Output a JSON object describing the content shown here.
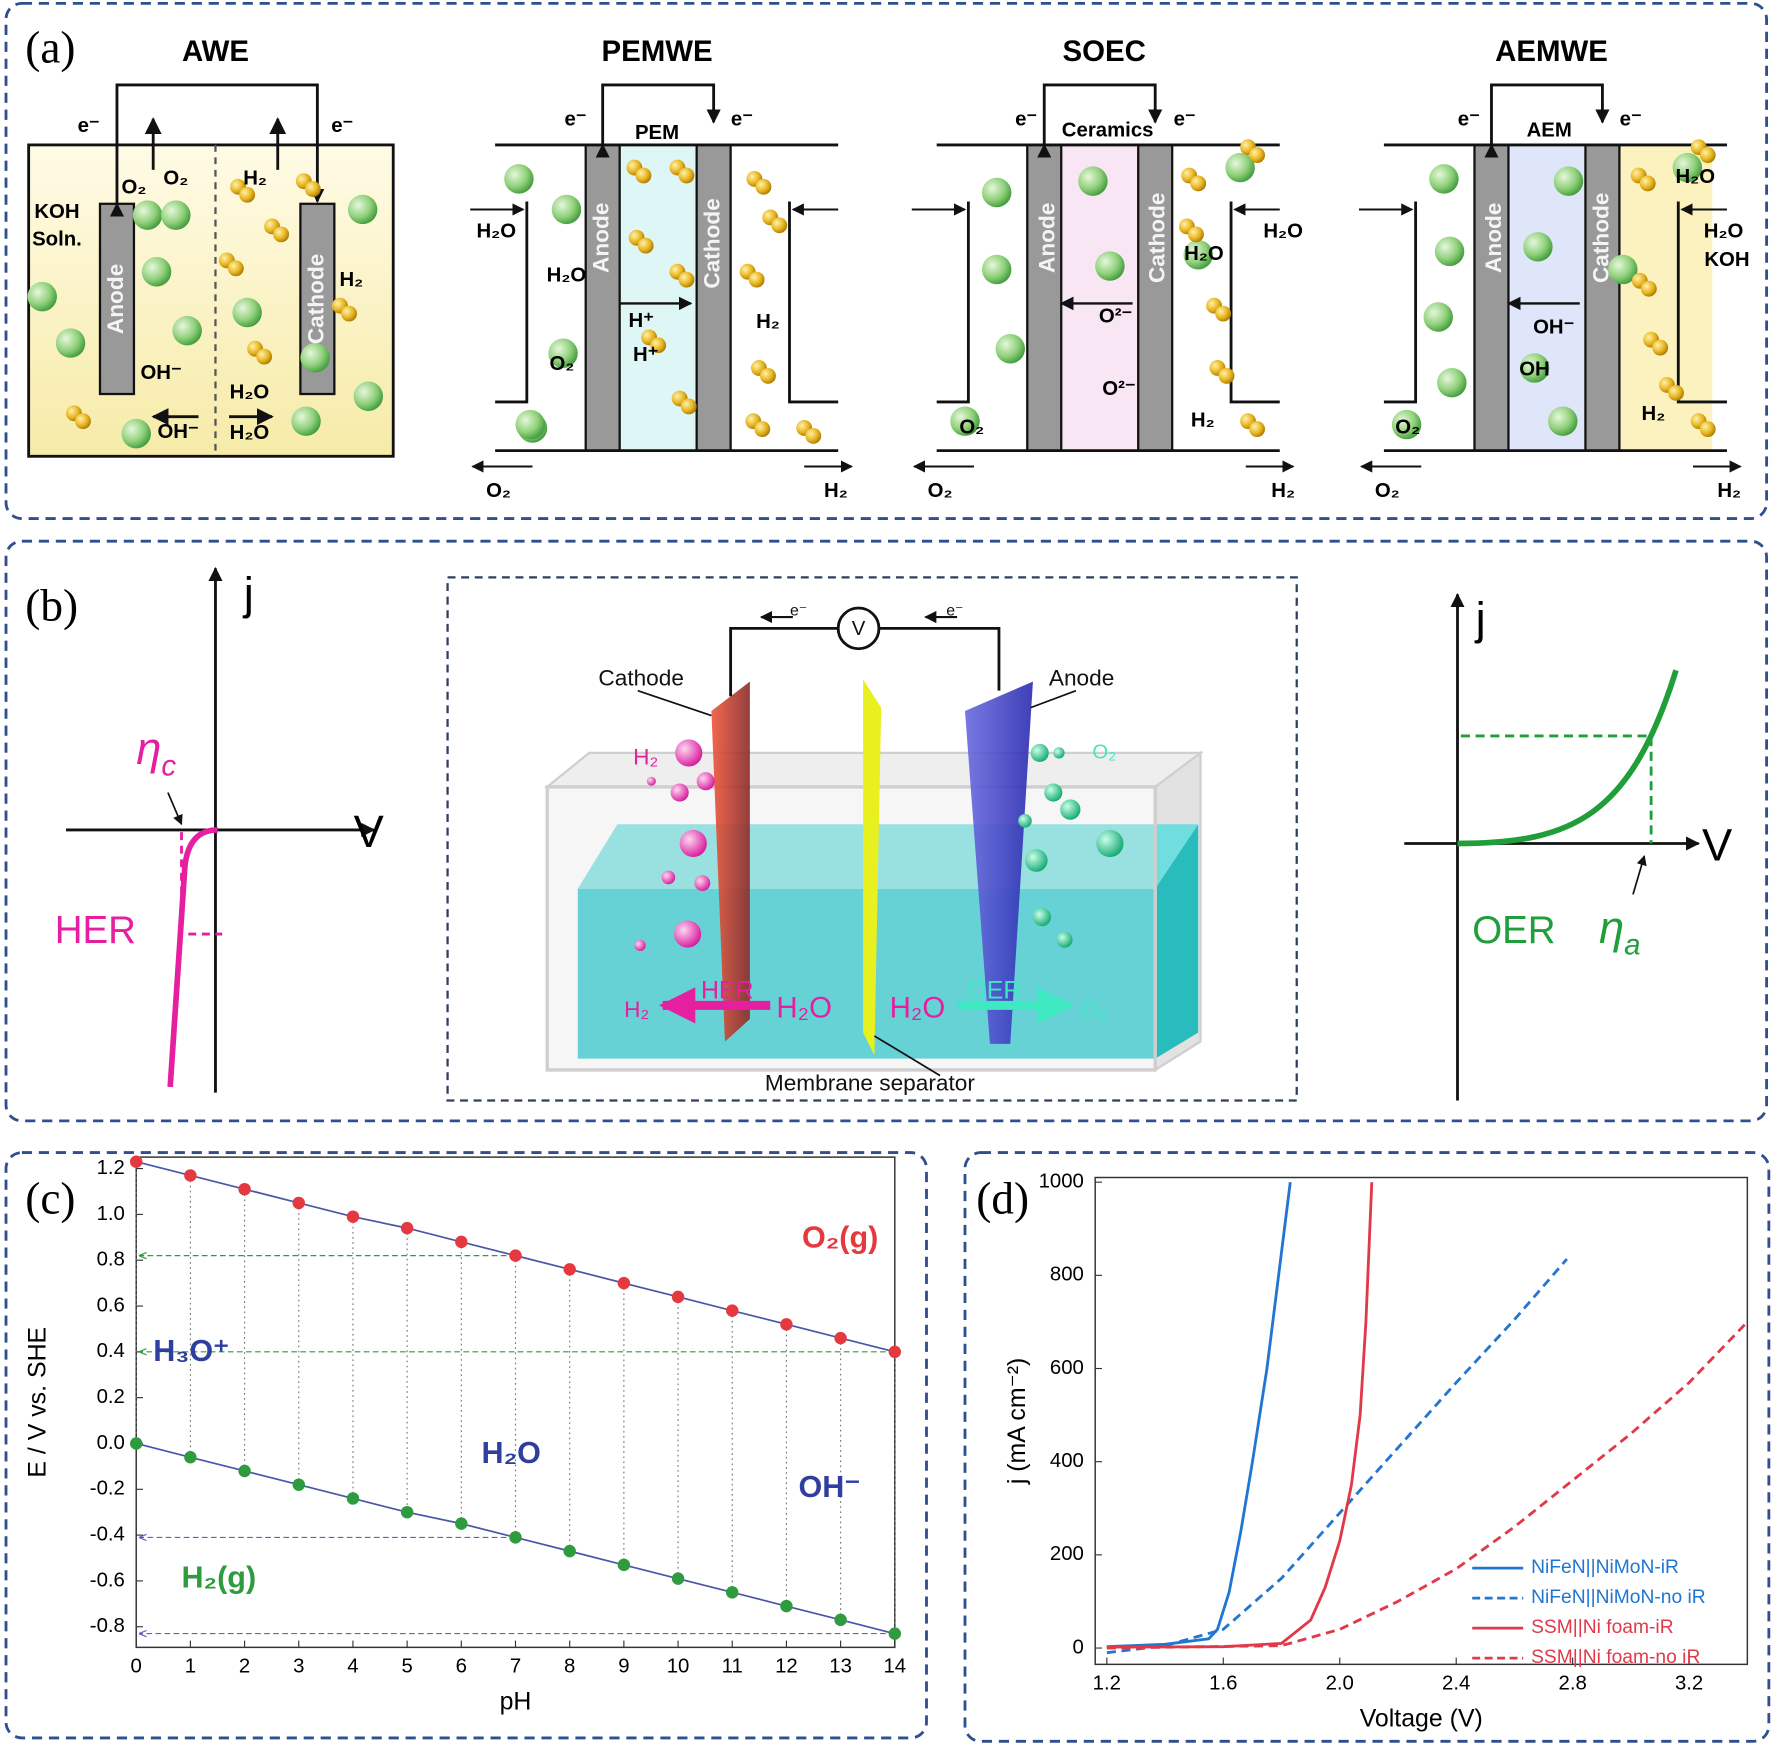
{
  "panel_a": {
    "label": "(a)",
    "cells": [
      {
        "title": "AWE",
        "texts": [
          "e⁻",
          "e⁻",
          "O₂",
          "H₂",
          "KOH",
          "Soln.",
          "Anode",
          "Cathode",
          "H₂",
          "OH⁻",
          "H₂O",
          "OH⁻",
          "H₂O",
          "O₂"
        ]
      },
      {
        "title": "PEMWE",
        "texts": [
          "e⁻",
          "e⁻",
          "PEM",
          "H₂O",
          "H₂O",
          "Anode",
          "Cathode",
          "H⁺",
          "H⁺",
          "O₂",
          "H₂",
          "O₂",
          "H₂"
        ]
      },
      {
        "title": "SOEC",
        "texts": [
          "e⁻",
          "e⁻",
          "Ceramics",
          "H₂O",
          "H₂O",
          "Anode",
          "Cathode",
          "O²⁻",
          "O²⁻",
          "O₂",
          "H₂",
          "O₂",
          "H₂"
        ]
      },
      {
        "title": "AEMWE",
        "texts": [
          "e⁻",
          "e⁻",
          "AEM",
          "H₂O",
          "H₂O",
          "KOH",
          "Anode",
          "Cathode",
          "OH⁻",
          "OH",
          "H₂",
          "O₂",
          "O₂",
          "H₂"
        ]
      }
    ]
  },
  "panel_b": {
    "label": "(b)",
    "her_plot": {
      "y_axis": "j",
      "x_axis": "V",
      "eta": {
        "symbol": "η",
        "subscript": "c"
      },
      "label": "HER"
    },
    "cell": {
      "texts": [
        "Cathode",
        "Anode",
        "H₂",
        "O₂",
        "HER",
        "H₂",
        "H₂O",
        "H₂O",
        "OER",
        "O₂",
        "Membrane separator",
        "e⁻",
        "e⁻",
        "V"
      ]
    },
    "oer_plot": {
      "y_axis": "j",
      "x_axis": "V",
      "eta": {
        "symbol": "η",
        "subscript": "a"
      },
      "label": "OER"
    }
  },
  "chart_data": [
    {
      "type": "line",
      "label": "(c)",
      "x_label": "pH",
      "y_label": "E / V vs. SHE",
      "markers": true,
      "x": [
        0,
        1,
        2,
        3,
        4,
        5,
        6,
        7,
        8,
        9,
        10,
        11,
        12,
        13,
        14
      ],
      "series": [
        {
          "color": "#e53940",
          "line_color": "#4b57a6",
          "values": [
            1.23,
            1.17,
            1.11,
            1.05,
            0.99,
            0.94,
            0.88,
            0.82,
            0.76,
            0.7,
            0.64,
            0.58,
            0.52,
            0.46,
            0.4
          ]
        },
        {
          "color": "#2e9b3e",
          "line_color": "#4b57a6",
          "values": [
            0,
            -0.06,
            -0.12,
            -0.18,
            -0.24,
            -0.3,
            -0.35,
            -0.41,
            -0.47,
            -0.53,
            -0.59,
            -0.65,
            -0.71,
            -0.77,
            -0.83
          ]
        }
      ],
      "annotations": [
        "O₂(g)",
        "H₃O⁺",
        "H₂O",
        "OH⁻",
        "H₂(g)"
      ],
      "xlim": [
        0,
        14
      ],
      "xticks": [
        0,
        1,
        2,
        3,
        4,
        5,
        6,
        7,
        8,
        9,
        10,
        11,
        12,
        13,
        14
      ],
      "ylim": [
        -0.89,
        1.25
      ],
      "yticks": [
        -0.8,
        -0.6,
        -0.4,
        -0.2,
        {
          "value": 0,
          "label": "0.0"
        },
        0.2,
        0.4,
        0.6,
        0.8,
        {
          "value": 1,
          "label": "1.0"
        },
        1.2
      ]
    },
    {
      "type": "line",
      "label": "(d)",
      "x_label": "Voltage (V)",
      "y_label": "j (mA cm⁻²)",
      "legend": "lower right",
      "series": [
        {
          "name": "NiFeN||NiMoN-iR",
          "color": "#2176d2",
          "dash": false,
          "x": [
            1.2,
            1.4,
            1.55,
            1.58,
            1.62,
            1.66,
            1.7,
            1.75,
            1.79,
            1.83
          ],
          "values": [
            3,
            8,
            20,
            40,
            120,
            250,
            400,
            600,
            800,
            1000
          ]
        },
        {
          "name": "NiFeN||NiMoN-no iR",
          "color": "#2176d2",
          "dash": true,
          "x": [
            1.2,
            1.4,
            1.6,
            1.8,
            2.0,
            2.2,
            2.4,
            2.6,
            2.78
          ],
          "values": [
            -10,
            5,
            40,
            150,
            290,
            430,
            570,
            705,
            835
          ]
        },
        {
          "name": "SSM||Ni foam-iR",
          "color": "#e03a4a",
          "dash": false,
          "x": [
            1.2,
            1.6,
            1.8,
            1.9,
            1.95,
            2.0,
            2.04,
            2.07,
            2.09,
            2.11
          ],
          "values": [
            2,
            3,
            10,
            60,
            130,
            230,
            350,
            500,
            700,
            1000
          ]
        },
        {
          "name": "SSM||Ni foam-no iR",
          "color": "#e03a4a",
          "dash": true,
          "x": [
            1.2,
            1.8,
            2.0,
            2.2,
            2.4,
            2.6,
            2.8,
            3.0,
            3.2,
            3.4
          ],
          "values": [
            0,
            5,
            40,
            100,
            170,
            260,
            360,
            460,
            570,
            700
          ]
        }
      ],
      "xlim": [
        1.16,
        3.4
      ],
      "xticks": [
        1.2,
        1.6,
        {
          "value": 2,
          "label": "2.0"
        },
        2.4,
        2.8,
        3.2
      ],
      "ylim": [
        -35,
        1010
      ],
      "yticks": [
        0,
        200,
        400,
        600,
        800,
        1000
      ]
    }
  ]
}
